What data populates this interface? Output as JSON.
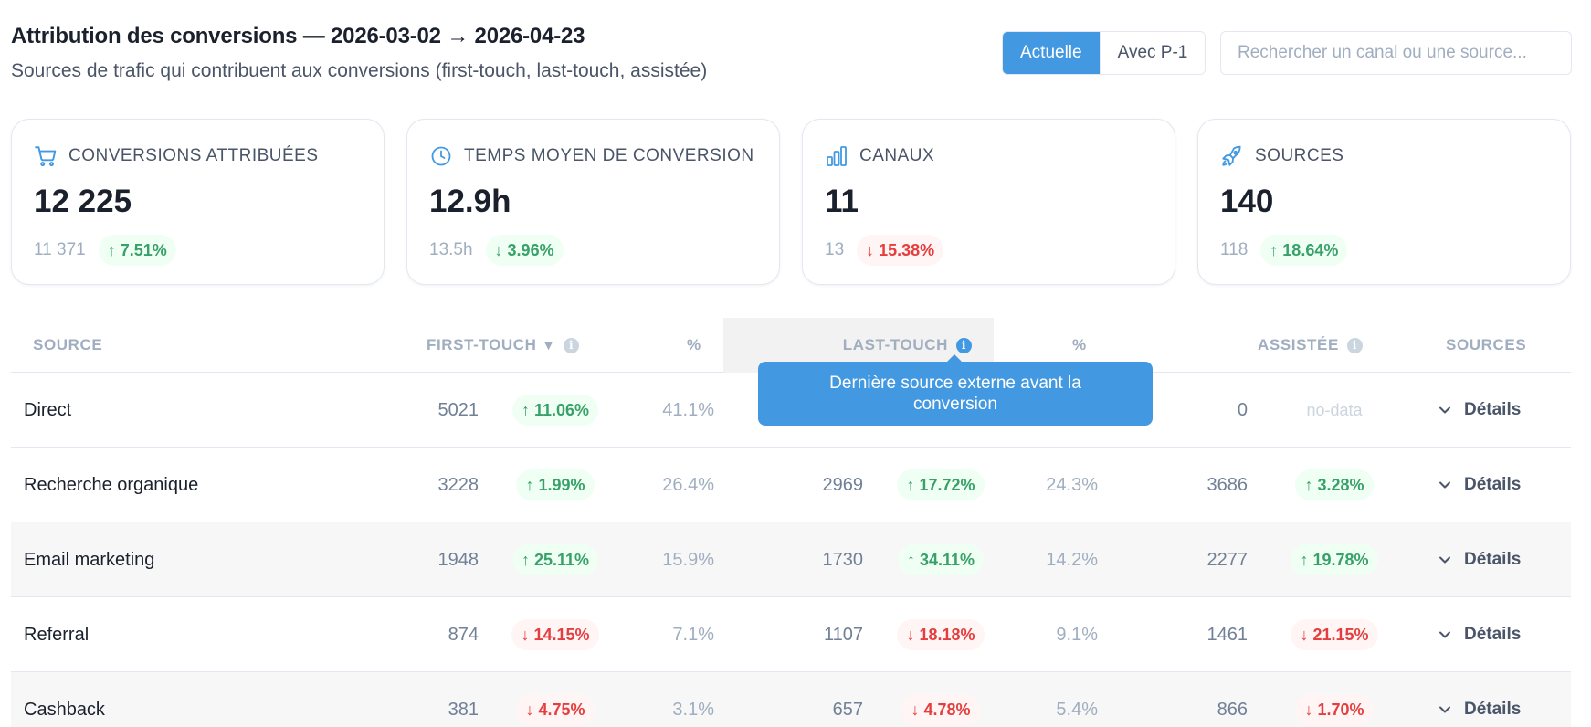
{
  "header": {
    "title": "Attribution des conversions — 2026-03-02 → 2026-04-23",
    "subtitle": "Sources de trafic qui contribuent aux conversions (first-touch, last-touch, assistée)"
  },
  "toggle": {
    "current_label": "Actuelle",
    "compare_label": "Avec P-1"
  },
  "search": {
    "placeholder": "Rechercher un canal ou une source..."
  },
  "colors": {
    "accent": "#4299e1",
    "up": "#38a169",
    "down": "#e53e3e"
  },
  "cards": [
    {
      "icon": "cart-icon",
      "label": "CONVERSIONS ATTRIBUÉES",
      "value": "12 225",
      "previous": "11 371",
      "delta": "↑ 7.51%",
      "trend": "up"
    },
    {
      "icon": "clock-icon",
      "label": "TEMPS MOYEN DE CONVERSION",
      "value": "12.9h",
      "previous": "13.5h",
      "delta": "↓ 3.96%",
      "trend": "up"
    },
    {
      "icon": "bar-chart-icon",
      "label": "CANAUX",
      "value": "11",
      "previous": "13",
      "delta": "↓ 15.38%",
      "trend": "down"
    },
    {
      "icon": "rocket-icon",
      "label": "SOURCES",
      "value": "140",
      "previous": "118",
      "delta": "↑ 18.64%",
      "trend": "up"
    }
  ],
  "table": {
    "columns": {
      "source": "SOURCE",
      "first_touch": "FIRST-TOUCH",
      "first_pct": "%",
      "last_touch": "LAST-TOUCH",
      "last_pct": "%",
      "assisted": "ASSISTÉE",
      "sources": "SOURCES"
    },
    "sort_indicator": "▼",
    "tooltip": "Dernière source externe avant la conversion",
    "details_label": "Détails",
    "no_data_label": "no-data",
    "rows": [
      {
        "name": "Direct",
        "first": "5021",
        "first_delta": "↑ 11.06%",
        "first_trend": "up",
        "first_pct": "41.1%",
        "last": "",
        "last_delta": "",
        "last_trend": "",
        "last_pct": "",
        "assisted": "0",
        "assisted_delta": "",
        "assisted_trend": "none"
      },
      {
        "name": "Recherche organique",
        "first": "3228",
        "first_delta": "↑ 1.99%",
        "first_trend": "up",
        "first_pct": "26.4%",
        "last": "2969",
        "last_delta": "↑ 17.72%",
        "last_trend": "up",
        "last_pct": "24.3%",
        "assisted": "3686",
        "assisted_delta": "↑ 3.28%",
        "assisted_trend": "up"
      },
      {
        "name": "Email marketing",
        "first": "1948",
        "first_delta": "↑ 25.11%",
        "first_trend": "up",
        "first_pct": "15.9%",
        "last": "1730",
        "last_delta": "↑ 34.11%",
        "last_trend": "up",
        "last_pct": "14.2%",
        "assisted": "2277",
        "assisted_delta": "↑ 19.78%",
        "assisted_trend": "up"
      },
      {
        "name": "Referral",
        "first": "874",
        "first_delta": "↓ 14.15%",
        "first_trend": "down",
        "first_pct": "7.1%",
        "last": "1107",
        "last_delta": "↓ 18.18%",
        "last_trend": "down",
        "last_pct": "9.1%",
        "assisted": "1461",
        "assisted_delta": "↓ 21.15%",
        "assisted_trend": "down"
      },
      {
        "name": "Cashback",
        "first": "381",
        "first_delta": "↓ 4.75%",
        "first_trend": "down",
        "first_pct": "3.1%",
        "last": "657",
        "last_delta": "↓ 4.78%",
        "last_trend": "down",
        "last_pct": "5.4%",
        "assisted": "866",
        "assisted_delta": "↓ 1.70%",
        "assisted_trend": "down"
      }
    ]
  }
}
